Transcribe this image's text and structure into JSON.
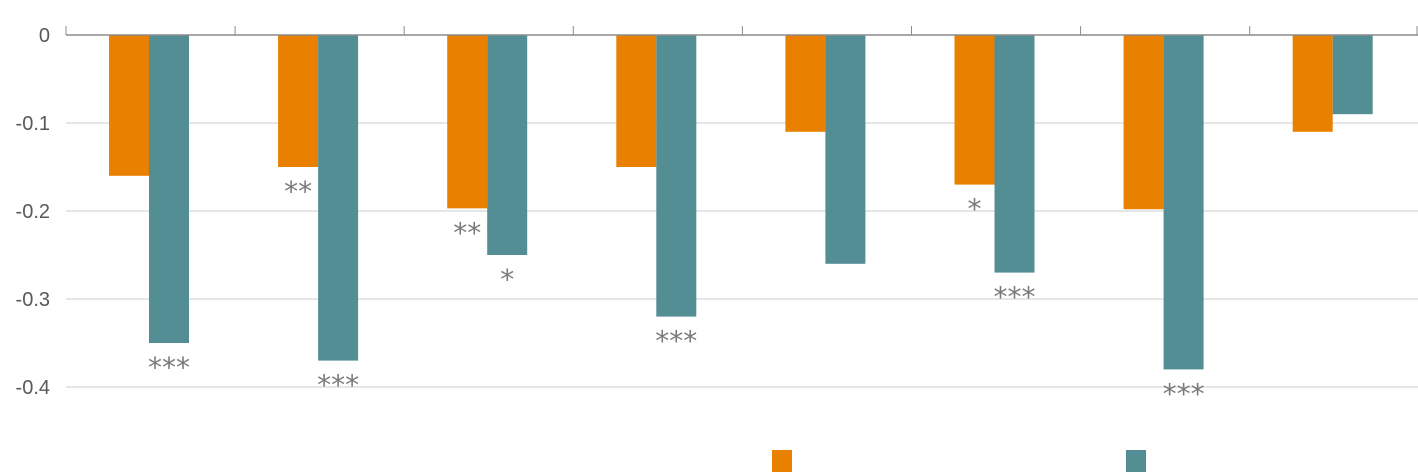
{
  "chart_data": {
    "type": "bar",
    "title": "",
    "xlabel": "",
    "ylabel": "",
    "ylim": [
      -0.45,
      0
    ],
    "yticks": [
      0,
      -0.1,
      -0.2,
      -0.3,
      -0.4
    ],
    "ytick_labels": [
      "0",
      "-0.1",
      "-0.2",
      "-0.3",
      "-0.4"
    ],
    "categories": [
      "",
      "",
      "",
      "",
      "",
      "",
      "",
      ""
    ],
    "series": [
      {
        "name": "",
        "color": "#E98000",
        "values": [
          -0.16,
          -0.15,
          -0.197,
          -0.15,
          -0.11,
          -0.17,
          -0.198,
          -0.11
        ],
        "significance": [
          "",
          "**",
          "**",
          "",
          "",
          "*",
          "",
          ""
        ]
      },
      {
        "name": "",
        "color": "#538E95",
        "values": [
          -0.35,
          -0.37,
          -0.25,
          -0.32,
          -0.26,
          -0.27,
          -0.38,
          -0.09
        ],
        "significance": [
          "***",
          "***",
          "*",
          "***",
          "",
          "***",
          "***",
          ""
        ]
      }
    ],
    "grid": true,
    "legend": "bottom-right"
  },
  "colors": {
    "gridline": "#C9CDD0",
    "axis": "#8C8C8C",
    "tick_text": "#595959",
    "sig_text": "#7A7A7A"
  }
}
